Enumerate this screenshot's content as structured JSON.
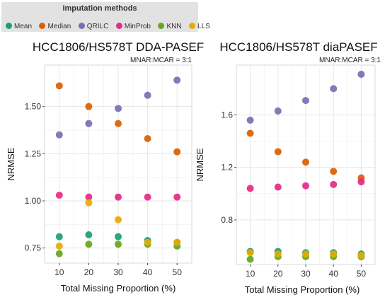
{
  "legend": {
    "title": "Imputation methods",
    "items": [
      {
        "label": "Mean",
        "color": "#1b9e77"
      },
      {
        "label": "Median",
        "color": "#d95f02"
      },
      {
        "label": "QRILC",
        "color": "#7570b3"
      },
      {
        "label": "MinProb",
        "color": "#e7298a"
      },
      {
        "label": "KNN",
        "color": "#66a61e"
      },
      {
        "label": "LLS",
        "color": "#e6ab02"
      }
    ]
  },
  "chart_data": [
    {
      "type": "scatter",
      "title": "HCC1806/HS578T DDA-PASEF",
      "annotation": "MNAR:MCAR = 3:1",
      "xlabel": "Total Missing Proportion (%)",
      "ylabel": "NRMSE",
      "x": [
        10,
        20,
        30,
        40,
        50
      ],
      "x_ticks": [
        "10",
        "20",
        "30",
        "40",
        "50"
      ],
      "xlim": [
        5,
        55
      ],
      "y_ticks": [
        0.75,
        1.0,
        1.25,
        1.5
      ],
      "y_tick_labels": [
        "0.75",
        "1.00",
        "1.25",
        "1.50"
      ],
      "ylim": [
        0.67,
        1.72
      ],
      "grid": true,
      "series": [
        {
          "name": "Mean",
          "values": [
            0.81,
            0.82,
            0.81,
            0.79,
            0.78
          ]
        },
        {
          "name": "Median",
          "values": [
            1.61,
            1.5,
            1.41,
            1.33,
            1.26
          ]
        },
        {
          "name": "QRILC",
          "values": [
            1.35,
            1.41,
            1.49,
            1.56,
            1.64
          ]
        },
        {
          "name": "MinProb",
          "values": [
            1.03,
            1.02,
            1.02,
            1.02,
            1.02
          ]
        },
        {
          "name": "KNN",
          "values": [
            0.72,
            0.77,
            0.77,
            0.77,
            0.76
          ]
        },
        {
          "name": "LLS",
          "values": [
            0.76,
            0.99,
            0.9,
            0.78,
            0.78
          ]
        }
      ]
    },
    {
      "type": "scatter",
      "title": "HCC1806/HS578T diaPASEF",
      "annotation": "MNAR:MCAR = 3:1",
      "xlabel": "Total Missing Proportion (%)",
      "ylabel": "NRMSE",
      "x": [
        10,
        20,
        30,
        40,
        50
      ],
      "x_ticks": [
        "10",
        "20",
        "30",
        "40",
        "50"
      ],
      "xlim": [
        5,
        55
      ],
      "y_ticks": [
        0.8,
        1.2,
        1.6
      ],
      "y_tick_labels": [
        "0.8",
        "1.2",
        "1.6"
      ],
      "ylim": [
        0.46,
        1.98
      ],
      "grid": true,
      "series": [
        {
          "name": "Mean",
          "values": [
            0.56,
            0.56,
            0.55,
            0.55,
            0.54
          ]
        },
        {
          "name": "Median",
          "values": [
            1.46,
            1.32,
            1.24,
            1.17,
            1.12
          ]
        },
        {
          "name": "QRILC",
          "values": [
            1.56,
            1.63,
            1.71,
            1.8,
            1.91
          ]
        },
        {
          "name": "MinProb",
          "values": [
            1.04,
            1.05,
            1.06,
            1.07,
            1.09
          ]
        },
        {
          "name": "KNN",
          "values": [
            0.5,
            0.52,
            0.52,
            0.52,
            0.52
          ]
        },
        {
          "name": "LLS",
          "values": [
            0.55,
            0.54,
            0.54,
            0.54,
            0.53
          ]
        }
      ]
    }
  ]
}
